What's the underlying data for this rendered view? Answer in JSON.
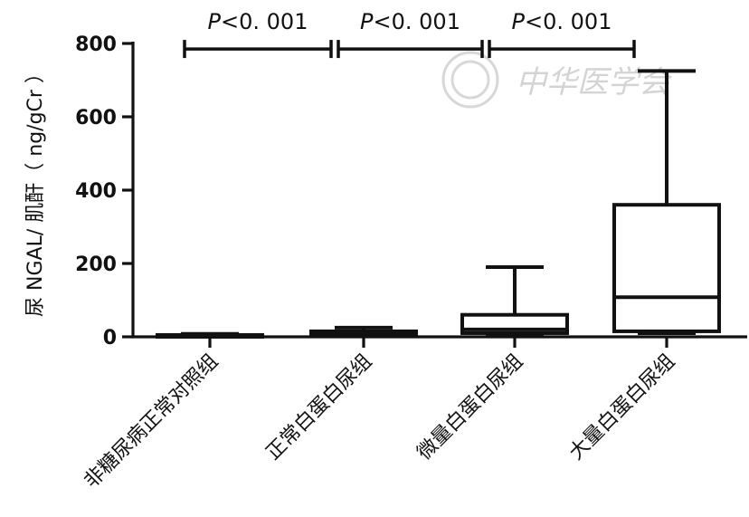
{
  "watermark": {
    "text": "中华医学会"
  },
  "chart_data": {
    "type": "boxplot",
    "ylabel": "尿 NGAL/ 肌酐（ ng/gCr ）",
    "ylim": [
      0,
      800
    ],
    "yticks": [
      0,
      200,
      400,
      600,
      800
    ],
    "ytick_labels": [
      "0",
      "200",
      "400",
      "600",
      "800"
    ],
    "categories": [
      "非糖尿病正常对照组",
      "正常白蛋白尿组",
      "微量白蛋白尿组",
      "大量白蛋白尿组"
    ],
    "boxes": [
      {
        "min": 0,
        "q1": 0,
        "median": 2,
        "q3": 5,
        "max": 8
      },
      {
        "min": 5,
        "q1": 8,
        "median": 12,
        "q3": 15,
        "max": 25
      },
      {
        "min": 5,
        "q1": 10,
        "median": 20,
        "q3": 60,
        "max": 190
      },
      {
        "min": 10,
        "q1": 15,
        "median": 108,
        "q3": 360,
        "max": 725
      }
    ],
    "comparisons": [
      {
        "from": 0,
        "to": 1,
        "y": 785,
        "label_p": "P",
        "label_rest": "<0. 001"
      },
      {
        "from": 1,
        "to": 2,
        "y": 785,
        "label_p": "P",
        "label_rest": "<0. 001"
      },
      {
        "from": 2,
        "to": 3,
        "y": 785,
        "label_p": "P",
        "label_rest": "<0. 001"
      }
    ]
  }
}
